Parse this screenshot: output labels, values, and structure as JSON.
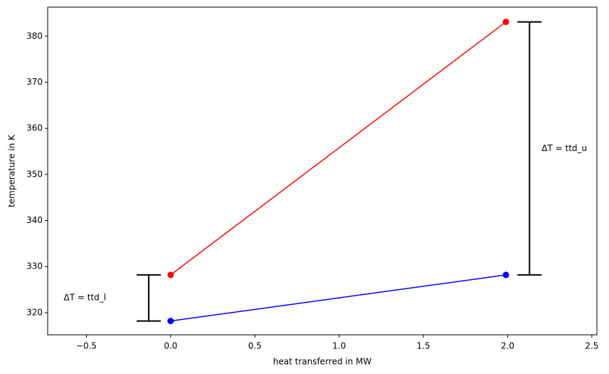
{
  "chart_data": {
    "type": "line",
    "xlabel": "heat transferred in MW",
    "ylabel": "temperature in K",
    "xlim": [
      -0.73,
      2.53
    ],
    "ylim": [
      315.2,
      386.3
    ],
    "xticks": [
      {
        "value": -0.5,
        "label": "−0.5"
      },
      {
        "value": 0,
        "label": "0.0"
      },
      {
        "value": 0.5,
        "label": "0.5"
      },
      {
        "value": 1,
        "label": "1.0"
      },
      {
        "value": 1.5,
        "label": "1.5"
      },
      {
        "value": 2,
        "label": "2.0"
      },
      {
        "value": 2.5,
        "label": "2.5"
      }
    ],
    "yticks": [
      320,
      330,
      340,
      350,
      360,
      370,
      380
    ],
    "series": [
      {
        "color": "#ff0000",
        "x": [
          0,
          1.99
        ],
        "values": [
          328.2,
          383.1
        ]
      },
      {
        "color": "#0000ff",
        "x": [
          0,
          1.99
        ],
        "values": [
          318.2,
          328.2
        ]
      }
    ],
    "annotations": [
      {
        "text": "ΔT = ttd_l",
        "x": -0.13,
        "y_low": 318.2,
        "y_high": 328.2,
        "label_side": "left"
      },
      {
        "text": "ΔT = ttd_u",
        "x": 2.13,
        "y_low": 328.2,
        "y_high": 383.1,
        "label_side": "right"
      }
    ]
  }
}
